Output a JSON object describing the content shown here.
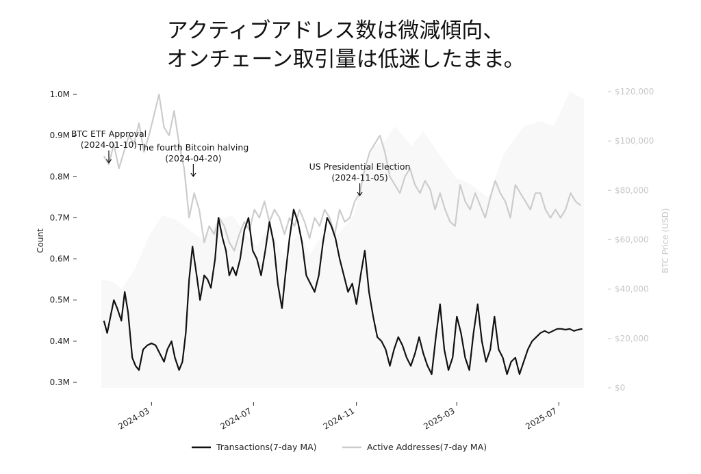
{
  "title_lines": [
    "アクティブアドレス数は微減傾向、",
    "オンチェーン取引量は低迷したまま。"
  ],
  "chart_data": {
    "type": "line",
    "title": "アクティブアドレス数は微減傾向、\nオンチェーン取引量は低迷したまま。",
    "ylabel": "Count",
    "ylabel_right": "BTC Price (USD)",
    "ylim": [
      300000,
      1000000
    ],
    "ylim_right": [
      0,
      120000
    ],
    "xlim": [
      "2024-01-01",
      "2025-07-31"
    ],
    "x_ticks": [
      "2024-03",
      "2024-07",
      "2024-11",
      "2025-03",
      "2025-07"
    ],
    "y_ticks": [
      "0.3M",
      "0.4M",
      "0.5M",
      "0.6M",
      "0.7M",
      "0.8M",
      "0.9M",
      "1.0M"
    ],
    "y_ticks_right": [
      "$0",
      "$20,000",
      "$40,000",
      "$60,000",
      "$80,000",
      "$100,000",
      "$120,000"
    ],
    "grid": false,
    "legend_position": "bottom-center",
    "series": [
      {
        "name": "Transactions(7-day MA)",
        "color": "#111111",
        "x": [
          "2024-01-04",
          "2024-01-08",
          "2024-01-12",
          "2024-01-16",
          "2024-01-20",
          "2024-01-25",
          "2024-01-29",
          "2024-02-02",
          "2024-02-07",
          "2024-02-11",
          "2024-02-15",
          "2024-02-20",
          "2024-02-25",
          "2024-03-01",
          "2024-03-06",
          "2024-03-11",
          "2024-03-16",
          "2024-03-20",
          "2024-03-25",
          "2024-03-29",
          "2024-04-03",
          "2024-04-07",
          "2024-04-11",
          "2024-04-15",
          "2024-04-19",
          "2024-04-24",
          "2024-04-28",
          "2024-05-03",
          "2024-05-07",
          "2024-05-11",
          "2024-05-16",
          "2024-05-20",
          "2024-05-25",
          "2024-05-29",
          "2024-06-02",
          "2024-06-06",
          "2024-06-10",
          "2024-06-15",
          "2024-06-20",
          "2024-06-25",
          "2024-06-30",
          "2024-07-05",
          "2024-07-10",
          "2024-07-15",
          "2024-07-20",
          "2024-07-25",
          "2024-07-30",
          "2024-08-04",
          "2024-08-08",
          "2024-08-13",
          "2024-08-18",
          "2024-08-23",
          "2024-08-28",
          "2024-09-02",
          "2024-09-07",
          "2024-09-12",
          "2024-09-17",
          "2024-09-22",
          "2024-09-27",
          "2024-10-02",
          "2024-10-07",
          "2024-10-12",
          "2024-10-17",
          "2024-10-22",
          "2024-10-27",
          "2024-11-01",
          "2024-11-06",
          "2024-11-11",
          "2024-11-16",
          "2024-11-21",
          "2024-11-26",
          "2024-12-01",
          "2024-12-06",
          "2024-12-11",
          "2024-12-16",
          "2024-12-21",
          "2024-12-26",
          "2024-12-31",
          "2025-01-05",
          "2025-01-10",
          "2025-01-15",
          "2025-01-20",
          "2025-01-25",
          "2025-01-30",
          "2025-02-04",
          "2025-02-09",
          "2025-02-14",
          "2025-02-19",
          "2025-02-24",
          "2025-03-01",
          "2025-03-06",
          "2025-03-11",
          "2025-03-16",
          "2025-03-21",
          "2025-03-26",
          "2025-03-31",
          "2025-04-05",
          "2025-04-10",
          "2025-04-15",
          "2025-04-20",
          "2025-04-25",
          "2025-04-30",
          "2025-05-05",
          "2025-05-10",
          "2025-05-15",
          "2025-05-20",
          "2025-05-25",
          "2025-05-30",
          "2025-06-04",
          "2025-06-09",
          "2025-06-14",
          "2025-06-19",
          "2025-06-24",
          "2025-06-29",
          "2025-07-04",
          "2025-07-09",
          "2025-07-14",
          "2025-07-19",
          "2025-07-24",
          "2025-07-29"
        ],
        "values": [
          450000,
          420000,
          460000,
          500000,
          480000,
          450000,
          520000,
          470000,
          360000,
          340000,
          330000,
          380000,
          390000,
          395000,
          390000,
          370000,
          350000,
          380000,
          400000,
          360000,
          330000,
          350000,
          420000,
          550000,
          630000,
          560000,
          500000,
          560000,
          550000,
          530000,
          600000,
          700000,
          650000,
          620000,
          560000,
          580000,
          560000,
          600000,
          670000,
          700000,
          620000,
          600000,
          560000,
          620000,
          690000,
          640000,
          540000,
          480000,
          560000,
          650000,
          720000,
          690000,
          640000,
          560000,
          540000,
          520000,
          560000,
          640000,
          700000,
          680000,
          650000,
          600000,
          560000,
          520000,
          540000,
          490000,
          560000,
          620000,
          520000,
          460000,
          410000,
          400000,
          380000,
          340000,
          380000,
          410000,
          390000,
          360000,
          340000,
          370000,
          410000,
          370000,
          340000,
          320000,
          410000,
          490000,
          380000,
          330000,
          360000,
          460000,
          420000,
          360000,
          330000,
          420000,
          490000,
          400000,
          350000,
          380000,
          460000,
          380000,
          360000,
          320000,
          350000,
          360000,
          320000,
          350000,
          380000,
          400000,
          410000,
          420000,
          425000,
          420000,
          425000,
          430000,
          430000,
          428000,
          430000,
          425000,
          428000,
          430000
        ]
      },
      {
        "name": "Active Addresses(7-day MA)",
        "color": "#cccccc",
        "x": [
          "2024-01-04",
          "2024-01-10",
          "2024-01-16",
          "2024-01-22",
          "2024-01-28",
          "2024-02-03",
          "2024-02-09",
          "2024-02-15",
          "2024-02-21",
          "2024-02-27",
          "2024-03-04",
          "2024-03-10",
          "2024-03-16",
          "2024-03-22",
          "2024-03-28",
          "2024-04-03",
          "2024-04-09",
          "2024-04-15",
          "2024-04-21",
          "2024-04-27",
          "2024-05-03",
          "2024-05-09",
          "2024-05-15",
          "2024-05-21",
          "2024-05-27",
          "2024-06-02",
          "2024-06-08",
          "2024-06-14",
          "2024-06-20",
          "2024-06-26",
          "2024-07-02",
          "2024-07-08",
          "2024-07-14",
          "2024-07-20",
          "2024-07-26",
          "2024-08-01",
          "2024-08-07",
          "2024-08-13",
          "2024-08-19",
          "2024-08-25",
          "2024-08-31",
          "2024-09-06",
          "2024-09-12",
          "2024-09-18",
          "2024-09-24",
          "2024-09-30",
          "2024-10-06",
          "2024-10-12",
          "2024-10-18",
          "2024-10-24",
          "2024-10-30",
          "2024-11-05",
          "2024-11-11",
          "2024-11-17",
          "2024-11-23",
          "2024-11-29",
          "2024-12-05",
          "2024-12-11",
          "2024-12-17",
          "2024-12-23",
          "2024-12-29",
          "2025-01-04",
          "2025-01-10",
          "2025-01-16",
          "2025-01-22",
          "2025-01-28",
          "2025-02-03",
          "2025-02-09",
          "2025-02-15",
          "2025-02-21",
          "2025-02-27",
          "2025-03-05",
          "2025-03-11",
          "2025-03-17",
          "2025-03-23",
          "2025-03-29",
          "2025-04-04",
          "2025-04-10",
          "2025-04-16",
          "2025-04-22",
          "2025-04-28",
          "2025-05-04",
          "2025-05-10",
          "2025-05-16",
          "2025-05-22",
          "2025-05-28",
          "2025-06-03",
          "2025-06-09",
          "2025-06-15",
          "2025-06-21",
          "2025-06-27",
          "2025-07-03",
          "2025-07-09",
          "2025-07-15",
          "2025-07-21",
          "2025-07-27"
        ],
        "values": [
          850000,
          830000,
          880000,
          820000,
          860000,
          900000,
          880000,
          930000,
          860000,
          900000,
          950000,
          1000000,
          920000,
          900000,
          960000,
          880000,
          820000,
          700000,
          760000,
          720000,
          640000,
          680000,
          660000,
          700000,
          680000,
          640000,
          620000,
          660000,
          690000,
          670000,
          720000,
          700000,
          740000,
          690000,
          720000,
          700000,
          660000,
          700000,
          680000,
          720000,
          690000,
          650000,
          700000,
          680000,
          720000,
          700000,
          660000,
          720000,
          690000,
          700000,
          740000,
          760000,
          820000,
          860000,
          880000,
          900000,
          860000,
          800000,
          780000,
          760000,
          800000,
          820000,
          780000,
          760000,
          790000,
          770000,
          720000,
          760000,
          720000,
          690000,
          680000,
          780000,
          740000,
          720000,
          760000,
          730000,
          700000,
          750000,
          790000,
          760000,
          740000,
          700000,
          780000,
          760000,
          740000,
          720000,
          760000,
          760000,
          720000,
          700000,
          720000,
          700000,
          720000,
          760000,
          740000,
          730000
        ]
      },
      {
        "name": "BTC Price (USD)",
        "color": "#f8f8f8",
        "x": [
          "2024-01-01",
          "2024-01-15",
          "2024-01-25",
          "2024-02-10",
          "2024-02-28",
          "2024-03-14",
          "2024-03-31",
          "2024-04-15",
          "2024-05-01",
          "2024-05-20",
          "2024-06-05",
          "2024-06-25",
          "2024-07-05",
          "2024-07-20",
          "2024-08-05",
          "2024-08-25",
          "2024-09-06",
          "2024-09-25",
          "2024-10-10",
          "2024-10-29",
          "2024-11-11",
          "2024-11-22",
          "2024-12-05",
          "2024-12-17",
          "2025-01-06",
          "2025-01-20",
          "2025-02-05",
          "2025-02-28",
          "2025-03-15",
          "2025-04-08",
          "2025-04-25",
          "2025-05-20",
          "2025-06-10",
          "2025-06-25",
          "2025-07-14",
          "2025-07-31"
        ],
        "values": [
          44000,
          43000,
          40000,
          48000,
          62000,
          70000,
          68000,
          64000,
          60000,
          68000,
          70000,
          61000,
          57000,
          66000,
          54000,
          63000,
          54000,
          64000,
          62000,
          70000,
          88000,
          98000,
          100000,
          106000,
          98000,
          104000,
          96000,
          85000,
          83000,
          77000,
          94000,
          106000,
          108000,
          106000,
          120000,
          117000
        ]
      }
    ],
    "annotations": [
      {
        "text": "BTC ETF Approval",
        "date": "2024-01-10",
        "x": "2024-01-10"
      },
      {
        "text": "The fourth Bitcoin halving",
        "date": "2024-04-20",
        "x": "2024-04-20"
      },
      {
        "text": "US Presidential Election",
        "date": "2024-11-05",
        "x": "2024-11-05"
      }
    ],
    "annotation_date_labels": [
      "(2024-01-10)",
      "(2024-04-20)",
      "(2024-11-05)"
    ]
  }
}
